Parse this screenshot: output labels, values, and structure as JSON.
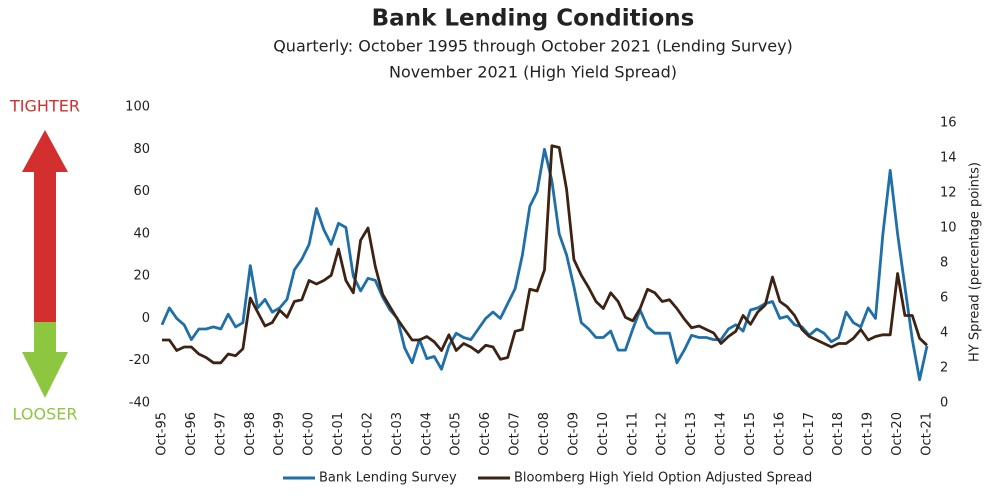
{
  "chart_data": {
    "type": "line",
    "title": "Bank Lending Conditions",
    "subtitle": [
      "Quarterly: October 1995 through October 2021 (Lending Survey)",
      "November 2021 (High Yield Spread)"
    ],
    "annotations": [
      {
        "text": "TIGHTER",
        "color": "#d32f2f"
      },
      {
        "text": "LOOSER",
        "color": "#8dc63f"
      }
    ],
    "y2label": "HY Spread (percentage points)",
    "categories": [
      "Oct-95",
      null,
      null,
      null,
      "Oct-96",
      null,
      null,
      null,
      "Oct-97",
      null,
      null,
      null,
      "Oct-98",
      null,
      null,
      null,
      "Oct-99",
      null,
      null,
      null,
      "Oct-00",
      null,
      null,
      null,
      "Oct-01",
      null,
      null,
      null,
      "Oct-02",
      null,
      null,
      null,
      "Oct-03",
      null,
      null,
      null,
      "Oct-04",
      null,
      null,
      null,
      "Oct-05",
      null,
      null,
      null,
      "Oct-06",
      null,
      null,
      null,
      "Oct-07",
      null,
      null,
      null,
      "Oct-08",
      null,
      null,
      null,
      "Oct-09",
      null,
      null,
      null,
      "Oct-10",
      null,
      null,
      null,
      "Oct-11",
      null,
      null,
      null,
      "Oct-12",
      null,
      null,
      null,
      "Oct-13",
      null,
      null,
      null,
      "Oct-14",
      null,
      null,
      null,
      "Oct-15",
      null,
      null,
      null,
      "Oct-16",
      null,
      null,
      null,
      "Oct-17",
      null,
      null,
      null,
      "Oct-18",
      null,
      null,
      null,
      "Oct-19",
      null,
      null,
      null,
      "Oct-20",
      null,
      null,
      null,
      "Oct-21"
    ],
    "series": [
      {
        "name": "Bank Lending Survey",
        "color": "#1f6fa8",
        "axis": "y",
        "values": [
          -3,
          5,
          0,
          -3,
          -10,
          -5,
          -5,
          -4,
          -5,
          2,
          -4,
          -2,
          25,
          5,
          9,
          3,
          5,
          9,
          23,
          28,
          35,
          52,
          42,
          35,
          45,
          43,
          20,
          13,
          19,
          18,
          10,
          4,
          0,
          -14,
          -21,
          -10,
          -19,
          -18,
          -24,
          -13,
          -7,
          -9,
          -10,
          -5,
          0,
          3,
          0,
          7,
          14,
          30,
          53,
          60,
          80,
          65,
          40,
          30,
          15,
          -2,
          -5,
          -9,
          -9,
          -6,
          -15,
          -15,
          -5,
          4,
          -4,
          -7,
          -7,
          -7,
          -21,
          -15,
          -8,
          -9,
          -9,
          -10,
          -10,
          -5,
          -3,
          -6,
          4,
          5,
          7,
          8,
          0,
          1,
          -3,
          -4,
          -8,
          -5,
          -7,
          -11,
          -9,
          3,
          -2,
          -4,
          5,
          0,
          40,
          70,
          40,
          15,
          -10,
          -29,
          -13
        ]
      },
      {
        "name": "Bloomberg  High Yield Option Adjusted Spread",
        "color": "#3d2314",
        "axis": "y2",
        "values": [
          3.6,
          3.6,
          3.0,
          3.2,
          3.2,
          2.8,
          2.6,
          2.3,
          2.3,
          2.8,
          2.7,
          3.1,
          6.0,
          5.2,
          4.4,
          4.6,
          5.3,
          4.9,
          5.8,
          5.9,
          7.0,
          6.8,
          7.0,
          7.3,
          8.8,
          7.0,
          6.3,
          9.3,
          10.0,
          7.8,
          6.2,
          5.5,
          4.8,
          4.2,
          3.6,
          3.6,
          3.8,
          3.5,
          3.0,
          3.9,
          3.0,
          3.4,
          3.2,
          2.9,
          3.3,
          3.2,
          2.5,
          2.6,
          4.1,
          4.2,
          6.5,
          6.4,
          7.6,
          14.7,
          14.6,
          12.2,
          8.2,
          7.3,
          6.6,
          5.8,
          5.4,
          6.3,
          5.8,
          4.9,
          4.7,
          5.4,
          6.5,
          6.3,
          5.8,
          5.9,
          5.4,
          4.8,
          4.3,
          4.4,
          4.2,
          4.0,
          3.4,
          3.8,
          4.1,
          5.0,
          4.5,
          5.2,
          5.6,
          7.2,
          5.8,
          5.5,
          5.0,
          4.2,
          3.8,
          3.6,
          3.4,
          3.2,
          3.4,
          3.4,
          3.7,
          4.2,
          3.6,
          3.8,
          3.9,
          3.9,
          7.4,
          5.0,
          5.0,
          3.7,
          3.3
        ]
      }
    ],
    "ylim": [
      -40,
      100
    ],
    "yticks": [
      -40,
      -20,
      0,
      20,
      40,
      60,
      80,
      100
    ],
    "y2lim": [
      0,
      16
    ],
    "y2ticks": [
      0,
      2,
      4,
      6,
      8,
      10,
      12,
      14,
      16
    ],
    "grid": false
  }
}
